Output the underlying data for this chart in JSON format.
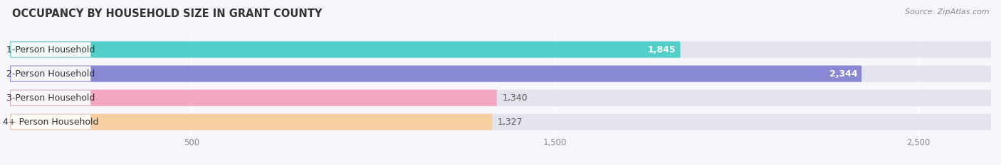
{
  "title": "OCCUPANCY BY HOUSEHOLD SIZE IN GRANT COUNTY",
  "source": "Source: ZipAtlas.com",
  "categories": [
    "1-Person Household",
    "2-Person Household",
    "3-Person Household",
    "4+ Person Household"
  ],
  "values": [
    1845,
    2344,
    1340,
    1327
  ],
  "bar_colors": [
    "#52cfc8",
    "#8888d4",
    "#f4a8c0",
    "#f8cfa0"
  ],
  "bar_bg_color": "#e4e4ee",
  "label_colors": [
    "#ffffff",
    "#ffffff",
    "#555555",
    "#555555"
  ],
  "value_colors_inside": [
    "#ffffff",
    "#ffffff"
  ],
  "value_colors_outside": [
    "#666666",
    "#666666"
  ],
  "xlim_data": [
    0,
    2700
  ],
  "xticks": [
    500,
    1500,
    2500
  ],
  "bar_height": 0.68,
  "figsize": [
    14.06,
    2.33
  ],
  "dpi": 100,
  "title_fontsize": 10.5,
  "source_fontsize": 8,
  "label_fontsize": 9,
  "value_fontsize": 9,
  "tick_fontsize": 8.5
}
